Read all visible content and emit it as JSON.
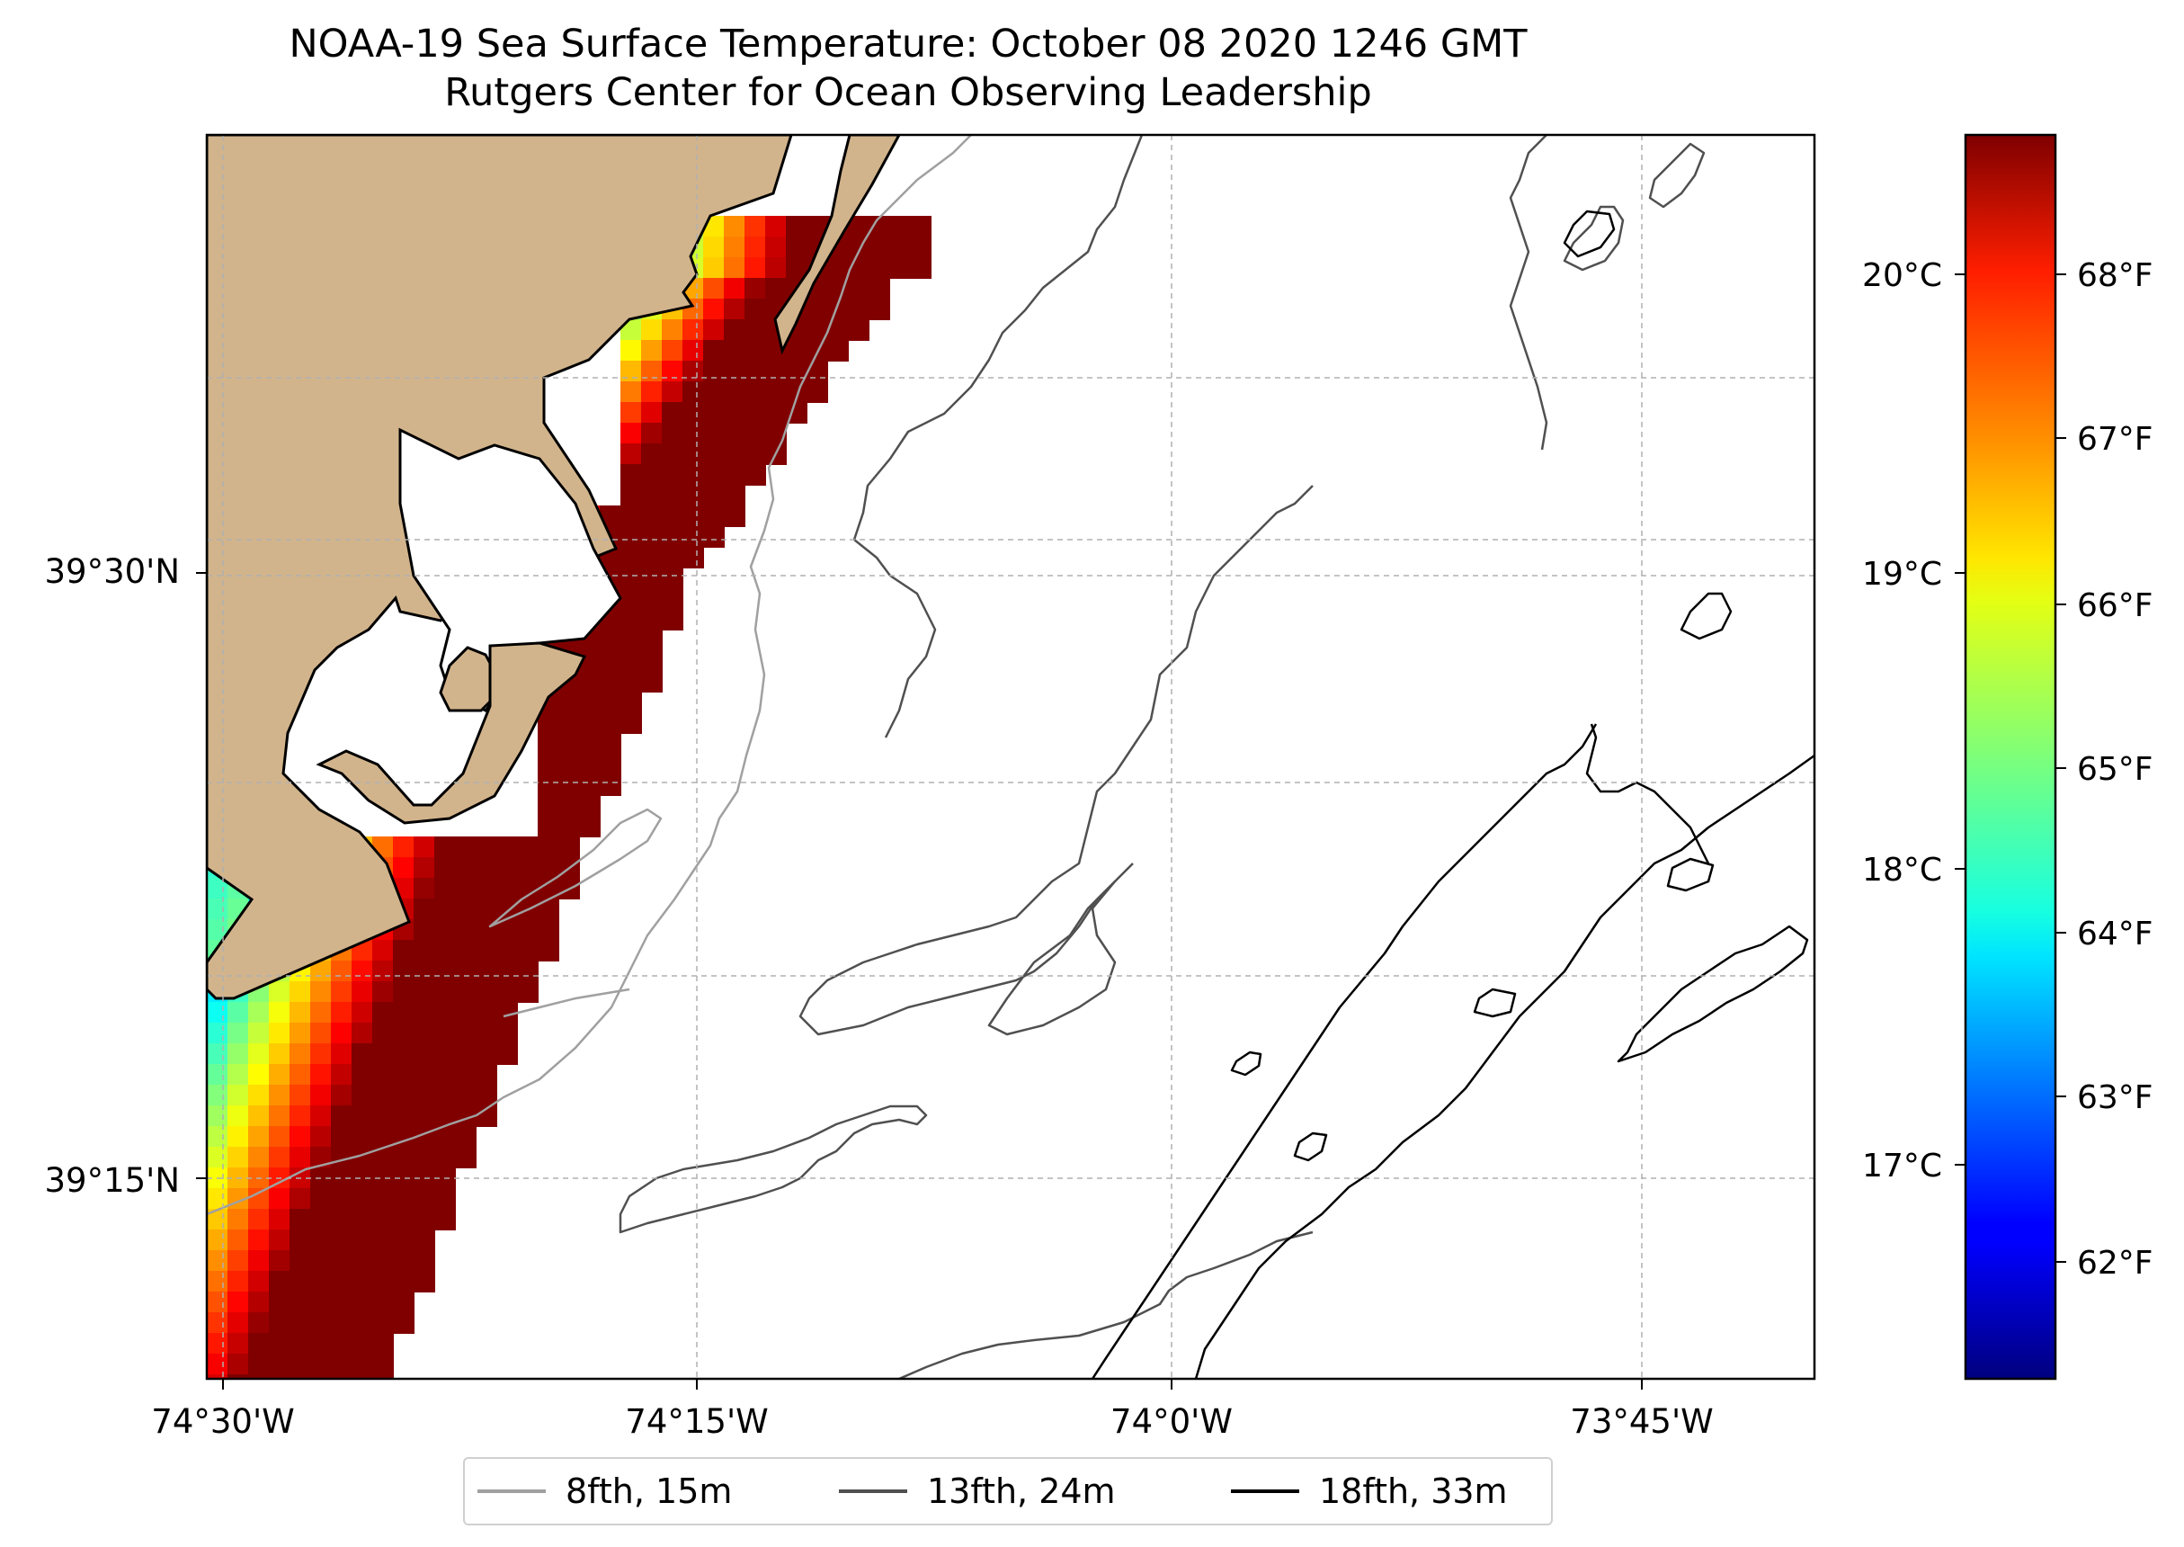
{
  "title": {
    "line1": "NOAA-19 Sea Surface Temperature: October 08 2020 1246 GMT",
    "line2": "Rutgers Center for Ocean Observing Leadership"
  },
  "map": {
    "lon_ticks": [
      "74°30'W",
      "74°15'W",
      "74°0'W",
      "73°45'W"
    ],
    "lat_ticks": [
      "39°30'N",
      "39°15'N"
    ],
    "land_color": "#d2b48c",
    "grid": true
  },
  "colorbar": {
    "celsius_ticks": [
      "20°C",
      "19°C",
      "18°C",
      "17°C"
    ],
    "fahrenheit_ticks": [
      "68°F",
      "67°F",
      "66°F",
      "65°F",
      "64°F",
      "63°F",
      "62°F"
    ],
    "colormap": "jet",
    "range_f": [
      61.3,
      68.8
    ]
  },
  "legend": {
    "items": [
      {
        "label": "8fth, 15m",
        "color": "#a0a0a0"
      },
      {
        "label": "13fth, 24m",
        "color": "#505050"
      },
      {
        "label": "18fth, 33m",
        "color": "#000000"
      }
    ]
  }
}
